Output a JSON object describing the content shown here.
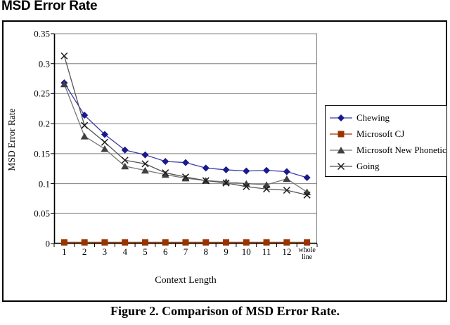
{
  "page": {
    "title": "MSD Error Rate",
    "caption": "Figure 2. Comparison of MSD Error Rate."
  },
  "chart_data": {
    "type": "line",
    "title": "MSD Error Rate",
    "xlabel": "Context Length",
    "ylabel": "MSD Error Rate",
    "categories": [
      "1",
      "2",
      "3",
      "4",
      "5",
      "6",
      "7",
      "8",
      "9",
      "10",
      "11",
      "12",
      "whole line"
    ],
    "ylim": [
      0,
      0.35
    ],
    "ytick_labels": [
      "0.35",
      "0.3",
      "0.25",
      "0.2",
      "0.15",
      "0.1",
      "0.05",
      "0"
    ],
    "ytick_values": [
      0.35,
      0.3,
      0.25,
      0.2,
      0.15,
      0.1,
      0.05,
      0
    ],
    "grid": true,
    "legend_position": "right-outside",
    "axis_color": "#000000",
    "grid_color": "#808080",
    "series": [
      {
        "name": "Chewing",
        "marker": "diamond",
        "color": "#1a1a8c",
        "line_color": "#3a3aa8",
        "values": [
          0.268,
          0.214,
          0.182,
          0.156,
          0.148,
          0.137,
          0.135,
          0.126,
          0.123,
          0.121,
          0.122,
          0.12,
          0.11
        ]
      },
      {
        "name": "Microsoft CJ",
        "marker": "square",
        "color": "#993300",
        "line_color": "#993300",
        "values": [
          0.002,
          0.002,
          0.002,
          0.002,
          0.002,
          0.002,
          0.002,
          0.002,
          0.002,
          0.002,
          0.002,
          0.002,
          0.002
        ]
      },
      {
        "name": "Microsoft New Phonetic",
        "marker": "triangle",
        "color": "#404040",
        "line_color": "#777777",
        "values": [
          0.266,
          0.179,
          0.158,
          0.129,
          0.122,
          0.115,
          0.109,
          0.105,
          0.103,
          0.1,
          0.098,
          0.108,
          0.086
        ]
      },
      {
        "name": "Going",
        "marker": "x",
        "color": "#1a1a1a",
        "line_color": "#555555",
        "values": [
          0.313,
          0.197,
          0.169,
          0.139,
          0.133,
          0.118,
          0.111,
          0.105,
          0.101,
          0.095,
          0.091,
          0.089,
          0.081
        ]
      }
    ]
  }
}
